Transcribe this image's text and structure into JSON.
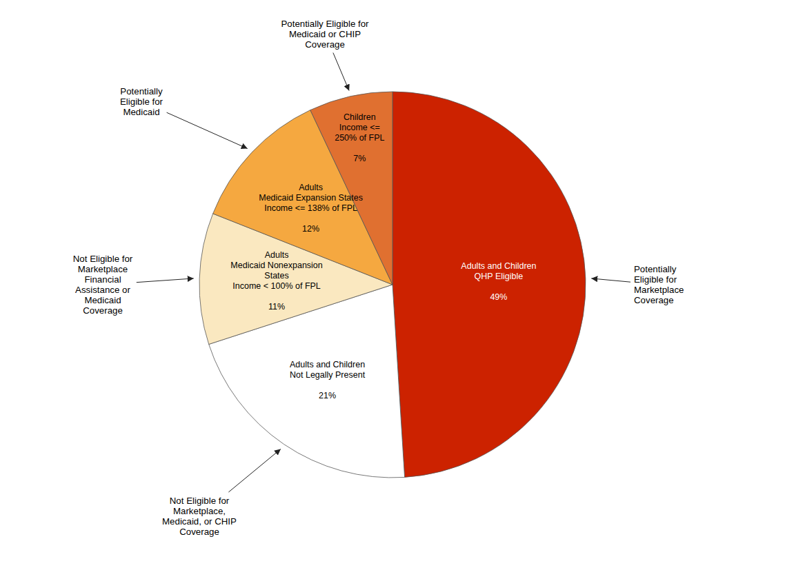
{
  "chart_data": {
    "type": "pie",
    "categories": [
      "Adults and Children\nQHP Eligible",
      "Adults and Children\nNot Legally Present",
      "Adults\nMedicaid Nonexpansion\nStates\nIncome < 100% of FPL",
      "Adults\nMedicaid Expansion States\nIncome <= 138% of FPL",
      "Children\nIncome <=\n250% of FPL"
    ],
    "values": [
      49,
      21,
      11,
      12,
      7
    ],
    "value_labels": [
      "49%",
      "21%",
      "11%",
      "12%",
      "7%"
    ],
    "data_labels": true,
    "colors": [
      "#CC2200",
      "#FFFFFF",
      "#FAE8C0",
      "#F5A840",
      "#E07030"
    ],
    "annotations": [
      "Potentially\nEligible for\nMarketplace\nCoverage",
      "Not Eligible for\nMarketplace,\nMedicaid, or CHIP\nCoverage",
      "Not Eligible for\nMarketplace\nFinancial\nAssistance or\nMedicaid\nCoverage",
      "Potentially\nEligible for\nMedicaid",
      "Potentially Eligible for\nMedicaid or CHIP\nCoverage"
    ]
  }
}
